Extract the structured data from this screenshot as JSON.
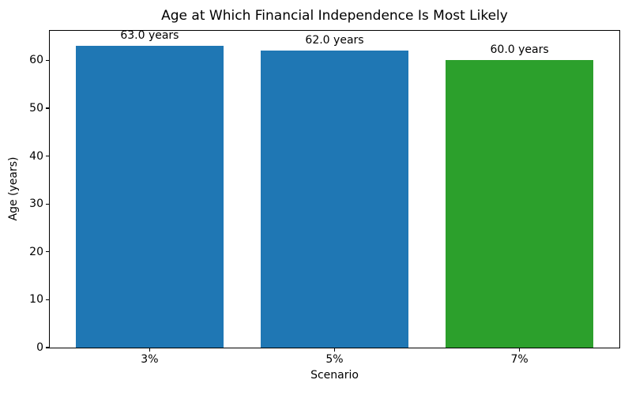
{
  "chart_data": {
    "type": "bar",
    "title": "Age at Which Financial Independence Is Most Likely",
    "xlabel": "Scenario",
    "ylabel": "Age (years)",
    "categories": [
      "3%",
      "5%",
      "7%"
    ],
    "values": [
      63.0,
      62.0,
      60.0
    ],
    "bar_labels": [
      "63.0 years",
      "62.0 years",
      "60.0 years"
    ],
    "bar_colors": [
      "#1f77b4",
      "#1f77b4",
      "#2ca02c"
    ],
    "ylim": [
      0,
      66.15
    ],
    "yticks": [
      0,
      10,
      20,
      30,
      40,
      50,
      60
    ],
    "bar_width_fraction": 0.8,
    "grid": false,
    "legend_position": "none"
  }
}
